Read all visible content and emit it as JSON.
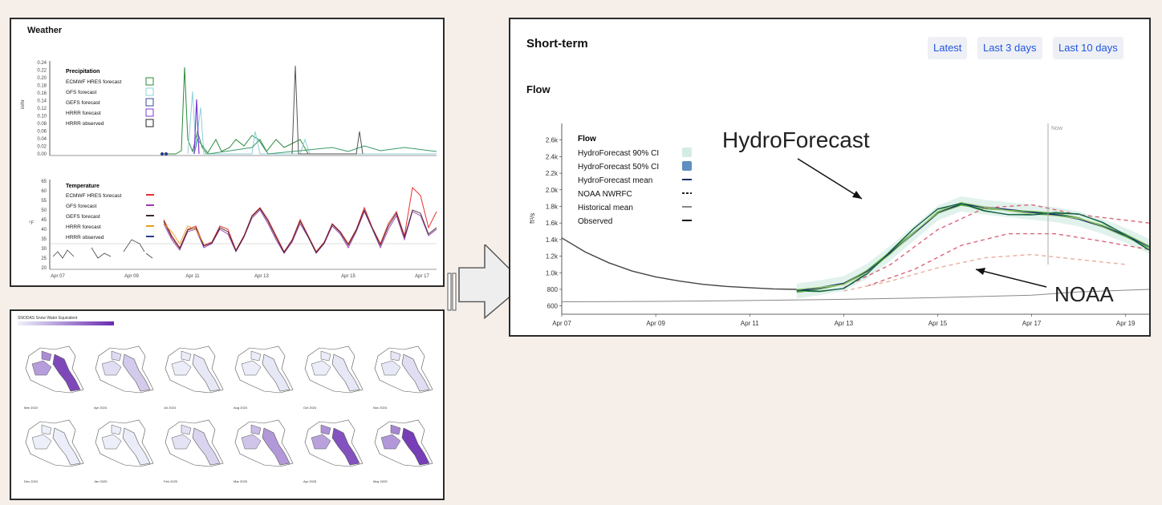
{
  "weather": {
    "title": "Weather",
    "precip": {
      "legend_title": "Precipitation",
      "ylabel": "in/hr",
      "ticks": [
        "0.24",
        "0.22",
        "0.20",
        "0.18",
        "0.16",
        "0.14",
        "0.12",
        "0.10",
        "0.08",
        "0.06",
        "0.04",
        "0.02",
        "0.00"
      ],
      "legend": [
        {
          "label": "ECMWF HRES forecast",
          "color": "#2a8a3a"
        },
        {
          "label": "GFS forecast",
          "color": "#8fd0d8"
        },
        {
          "label": "GEFS forecast",
          "color": "#3a4a9a"
        },
        {
          "label": "HRRR forecast",
          "color": "#7a3ad8"
        },
        {
          "label": "HRRR observed",
          "color": "#222222"
        }
      ]
    },
    "temp": {
      "legend_title": "Temperature",
      "ylabel": "°F",
      "ticks": [
        "65",
        "60",
        "55",
        "50",
        "45",
        "40",
        "35",
        "30",
        "25",
        "20"
      ],
      "legend": [
        {
          "label": "ECMWF HRES forecast",
          "color": "#e83030"
        },
        {
          "label": "GFS forecast",
          "color": "#9a3ab0"
        },
        {
          "label": "GEFS forecast",
          "color": "#3a2a2a"
        },
        {
          "label": "HRRR forecast",
          "color": "#e8a020"
        },
        {
          "label": "HRRR observed",
          "color": "#2a3a8a"
        }
      ]
    },
    "xticks": [
      "Apr 07",
      "Apr 09",
      "Apr 11",
      "Apr 13",
      "Apr 15",
      "Apr 17"
    ]
  },
  "snow": {
    "title": "SNODAS Snow Water Equivalent",
    "scale_min": "",
    "scale_max": "",
    "maps": [
      {
        "label": "Mar 2024",
        "level": 0.85
      },
      {
        "label": "Apr 2024",
        "level": 0.2
      },
      {
        "label": "Jul 2024",
        "level": 0.05
      },
      {
        "label": "Aug 2024",
        "level": 0.05
      },
      {
        "label": "Oct 2024",
        "level": 0.05
      },
      {
        "label": "Nov 2024",
        "level": 0.1
      },
      {
        "label": "Dec 2024",
        "level": 0.02
      },
      {
        "label": "Jan 2025",
        "level": 0.03
      },
      {
        "label": "Feb 2025",
        "level": 0.15
      },
      {
        "label": "Mar 2025",
        "level": 0.45
      },
      {
        "label": "Apr 2025",
        "level": 0.8
      },
      {
        "label": "May 2025",
        "level": 0.9
      }
    ]
  },
  "shortterm": {
    "title": "Short-term",
    "subtitle": "Flow",
    "buttons": [
      "Latest",
      "Last 3 days",
      "Last 10 days"
    ],
    "annotation_hydro": "HydroForecast",
    "annotation_noaa": "NOAA",
    "now_label": "Now"
  },
  "chart_data": [
    {
      "type": "line",
      "title": "Flow",
      "ylabel": "ft³/s",
      "y_ticks": [
        "2.6k",
        "2.4k",
        "2.2k",
        "2.0k",
        "1.8k",
        "1.6k",
        "1.4k",
        "1.2k",
        "1.0k",
        "800",
        "600"
      ],
      "x_ticks": [
        "Apr 07",
        "Apr 09",
        "Apr 11",
        "Apr 13",
        "Apr 15",
        "Apr 17",
        "Apr 19"
      ],
      "xlim": [
        0,
        12.5
      ],
      "ylim": [
        500,
        2800
      ],
      "legend": [
        {
          "label": "HydroForecast 90% CI",
          "color": "#d4ece4"
        },
        {
          "label": "HydroForecast 50% CI",
          "color": "#5f8fc0"
        },
        {
          "label": "HydroForecast mean",
          "color": "#1a2f6a"
        },
        {
          "label": "NOAA NWRFC",
          "color": "#222222"
        },
        {
          "label": "Historical mean",
          "color": "#888888"
        },
        {
          "label": "Observed",
          "color": "#111111"
        }
      ],
      "series": [
        {
          "name": "Observed",
          "color": "#444444",
          "x": [
            0,
            0.5,
            1,
            1.5,
            2,
            2.5,
            3,
            3.5,
            4,
            4.5,
            5
          ],
          "y": [
            1420,
            1250,
            1120,
            1020,
            950,
            900,
            860,
            835,
            820,
            805,
            800
          ]
        },
        {
          "name": "Historical mean",
          "color": "#888888",
          "x": [
            0,
            2,
            4,
            6,
            8,
            10,
            11,
            12.5
          ],
          "y": [
            650,
            655,
            665,
            680,
            700,
            730,
            770,
            800
          ]
        },
        {
          "name": "HydroForecast mean",
          "color": "#1a2f6a",
          "x": [
            5,
            5.5,
            6,
            6.5,
            7,
            7.5,
            8,
            8.5,
            9,
            9.5,
            10,
            10.5,
            11,
            11.5,
            12,
            12.5
          ],
          "y": [
            780,
            820,
            870,
            1020,
            1240,
            1480,
            1720,
            1830,
            1790,
            1760,
            1730,
            1700,
            1650,
            1560,
            1450,
            1320
          ]
        },
        {
          "name": "NOAA NWRFC",
          "color": "#d9657a",
          "x": [
            6,
            7,
            8,
            9,
            10,
            11,
            12.5
          ],
          "y": [
            820,
            1100,
            1520,
            1780,
            1820,
            1700,
            1600
          ]
        },
        {
          "name": "NOAA NWRFC",
          "color": "#d9657a",
          "x": [
            6.5,
            7.5,
            8.5,
            9.5,
            10.5,
            11.5,
            12.5
          ],
          "y": [
            840,
            1040,
            1330,
            1470,
            1470,
            1380,
            1280
          ]
        },
        {
          "name": "NOAA NWRFC",
          "color": "#e8b0a0",
          "x": [
            6,
            7,
            8,
            9,
            10,
            11,
            12
          ],
          "y": [
            780,
            900,
            1060,
            1180,
            1220,
            1160,
            1100
          ]
        }
      ]
    }
  ]
}
